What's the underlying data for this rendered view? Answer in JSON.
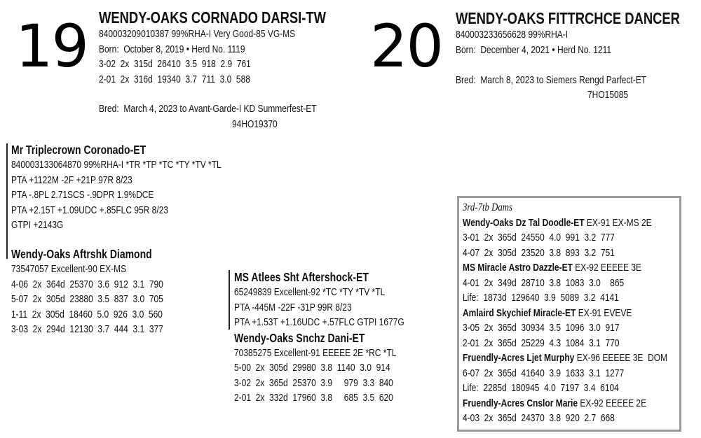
{
  "lot19": {
    "number": "19",
    "title": "WENDY-OAKS CORNADO DARSI-TW",
    "lines": [
      "840003209010387 99%RHA-I Very Good-85 VG-MS",
      "Born:  October 8, 2019 • Herd No. 1119",
      "3-02  2x  315d  26410  3.5  918  2.9  761",
      "2-01  2x  316d  19340  3.7  711  3.0  588"
    ],
    "bred": "Bred:  March 4, 2023 to Avant-Garde-I KD Summerfest-ET",
    "bred_code": "94HO19370"
  },
  "lot20": {
    "number": "20",
    "title": "WENDY-OAKS FITTRCHCE DANCER",
    "lines": [
      "840003233656628 99%RHA-I",
      "Born:  December 4, 2021 • Herd No. 1211"
    ],
    "bred": "Bred:  March 8, 2023 to Siemers Rengd Parfect-ET",
    "bred_code": "7HO15085"
  },
  "sire": {
    "name": "Mr Triplecrown Coronado-ET",
    "lines": [
      "840003133064870 99%RHA-I *TR *TP *TC *TY *TV *TL",
      "PTA +1122M -2F +21P 97R 8/23",
      "PTA -.8PL 2.71SCS -.9DPR 1.9%DCE",
      "PTA +2.15T +1.09UDC +.85FLC 95R 8/23",
      "GTPI +2143G"
    ]
  },
  "dam": {
    "name": "Wendy-Oaks Aftrshk Diamond",
    "lines": [
      "73547057 Excellent-90 EX-MS",
      "4-06  2x  364d  25370  3.6  912  3.1  790",
      "5-07  2x  305d  23880  3.5  837  3.0  705",
      "1-11  2x  305d  18460  5.0  926  3.0  560",
      "3-03  2x  294d  12130  3.7  444  3.1  377"
    ]
  },
  "mgs": {
    "name": "MS Atlees Sht Aftershock-ET",
    "lines": [
      "65249839 Excellent-92 *TC *TY *TV *TL",
      "PTA -445M -22F -31P 99R 8/23",
      "PTA +1.53T +1.16UDC +.57FLC GTPI 1677G"
    ]
  },
  "granddam": {
    "name": "Wendy-Oaks Snchz Dani-ET",
    "lines": [
      "70385275 Excellent-91 EEEEE 2E *RC *TL",
      "5-00  2x  305d  29980  3.8  1140  3.0  914",
      "3-02  2x  365d  25370  3.9     979  3.3  840",
      "2-01  2x  332d  17960  3.8     685  3.5  620"
    ]
  },
  "dams_box": {
    "heading": "3rd-7tb Dams",
    "entries": [
      {
        "name": "Wendy-Oaks Dz Tal Doodle-ET",
        "class": " EX-91 EX-MS 2E",
        "lines": [
          "3-01  2x  365d  24550  4.0  991  3.2  777",
          "4-07  2x  305d  23520  3.8  893  3.2  751"
        ]
      },
      {
        "name": "MS Miracle Astro Dazzle-ET",
        "class": " EX-92 EEEEE 3E",
        "lines": [
          "4-01  2x  349d  28710  3.8  1083  3.0    865",
          "Life:  1873d  129640  3.9  5089  3.2  4141"
        ]
      },
      {
        "name": "Amlaird Skychief Miracle-ET",
        "class": " EX-91 EVEVE",
        "lines": [
          "3-05  2x  365d  30934  3.5  1096  3.0  917",
          "2-01  2x  365d  25229  4.3  1084  3.1  770"
        ]
      },
      {
        "name": "Fruendly-Acres Ljet Murphy",
        "class": " EX-96 EEEEE 3E  DOM",
        "lines": [
          "6-07  2x  365d  41640  3.9  1633  3.1  1277",
          "Life:  2285d  180945  4.0  7197  3.4  6104"
        ]
      },
      {
        "name": "Fruendly-Acres Cnslor Marie",
        "class": " EX-92 EEEEE 2E",
        "lines": [
          "4-03  2x  365d  24370  3.8  920  2.7  668"
        ]
      }
    ]
  },
  "colors": {
    "text": "#111111",
    "box_border": "#9a9a9a"
  }
}
